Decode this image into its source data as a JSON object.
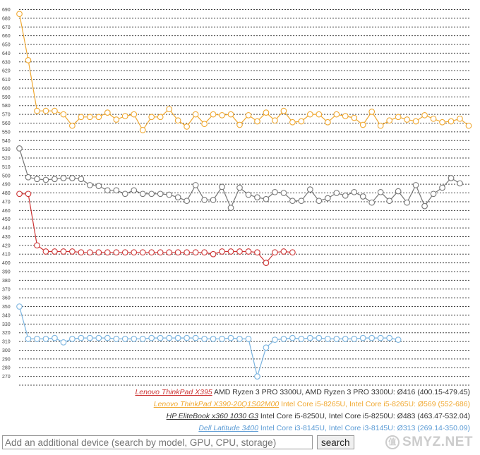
{
  "chart_data": {
    "type": "line",
    "ylim": [
      260,
      690
    ],
    "y_ticks": [
      690,
      680,
      670,
      660,
      650,
      640,
      630,
      620,
      610,
      600,
      590,
      580,
      570,
      560,
      550,
      540,
      530,
      520,
      510,
      500,
      490,
      480,
      470,
      460,
      450,
      440,
      430,
      420,
      410,
      400,
      390,
      380,
      370,
      360,
      350,
      340,
      330,
      320,
      310,
      300,
      290,
      280,
      270
    ],
    "grid": true,
    "legend_position": "bottom-right",
    "series": [
      {
        "color": "#f0a830",
        "values": [
          685,
          632,
          574,
          574,
          574,
          570,
          557,
          567,
          567,
          567,
          572,
          564,
          568,
          570,
          552,
          567,
          567,
          576,
          563,
          556,
          570,
          559,
          570,
          569,
          570,
          558,
          569,
          562,
          572,
          563,
          574,
          561,
          562,
          570,
          570,
          561,
          570,
          568,
          566,
          558,
          573,
          557,
          563,
          567,
          564,
          562,
          569,
          565,
          561,
          562,
          565,
          557
        ]
      },
      {
        "color": "#777777",
        "values": [
          531,
          498,
          496,
          495,
          496,
          497,
          497,
          496,
          489,
          488,
          483,
          483,
          479,
          483,
          479,
          479,
          479,
          478,
          475,
          471,
          489,
          472,
          472,
          487,
          463,
          486,
          478,
          475,
          473,
          481,
          480,
          471,
          471,
          484,
          471,
          474,
          480,
          477,
          481,
          476,
          469,
          481,
          471,
          482,
          469,
          489,
          465,
          479,
          486,
          497,
          491
        ]
      },
      {
        "color": "#cc3333",
        "values": [
          479,
          479,
          420,
          413,
          413,
          413,
          413,
          412,
          412,
          412,
          412,
          412,
          412,
          412,
          412,
          412,
          412,
          412,
          412,
          412,
          412,
          412,
          410,
          413,
          413,
          413,
          413,
          412,
          400,
          412,
          413,
          412
        ]
      },
      {
        "color": "#7ab4e0",
        "values": [
          350,
          313,
          313,
          313,
          314,
          309,
          313,
          314,
          314,
          314,
          314,
          313,
          313,
          313,
          313,
          314,
          314,
          314,
          314,
          314,
          314,
          313,
          313,
          313,
          314,
          313,
          313,
          270,
          303,
          312,
          313,
          314,
          313,
          314,
          314,
          313,
          313,
          313,
          313,
          314,
          314,
          314,
          314,
          312
        ]
      }
    ]
  },
  "legend": [
    {
      "device": "Lenovo ThinkPad X395",
      "cpu": " AMD Ryzen 3 PRO 3300U, AMD Ryzen 3 PRO 3300U: ",
      "stats": "Ø416 (400.15-479.45)",
      "device_color": "#cc3333",
      "text_color": "#333333"
    },
    {
      "device": "Lenovo ThinkPad X390-20Q1S02M00",
      "cpu": " Intel Core i5-8265U, Intel Core i5-8265U: ",
      "stats": "Ø569 (552-686)",
      "device_color": "#f0a830",
      "text_color": "#f0a830"
    },
    {
      "device": "HP EliteBook x360 1030 G3",
      "cpu": " Intel Core i5-8250U, Intel Core i5-8250U: ",
      "stats": "Ø483 (463.47-532.04)",
      "device_color": "#333333",
      "text_color": "#333333"
    },
    {
      "device": "Dell Latitude 3400",
      "cpu": " Intel Core i3-8145U, Intel Core i3-8145U: ",
      "stats": "Ø313 (269.14-350.09)",
      "device_color": "#5b9bd5",
      "text_color": "#5b9bd5"
    }
  ],
  "search": {
    "placeholder": "Add an additional device (search by model, GPU, CPU, storage)",
    "button_label": "search"
  },
  "watermark": {
    "text": "SMYZ.NET",
    "icon": "值"
  }
}
